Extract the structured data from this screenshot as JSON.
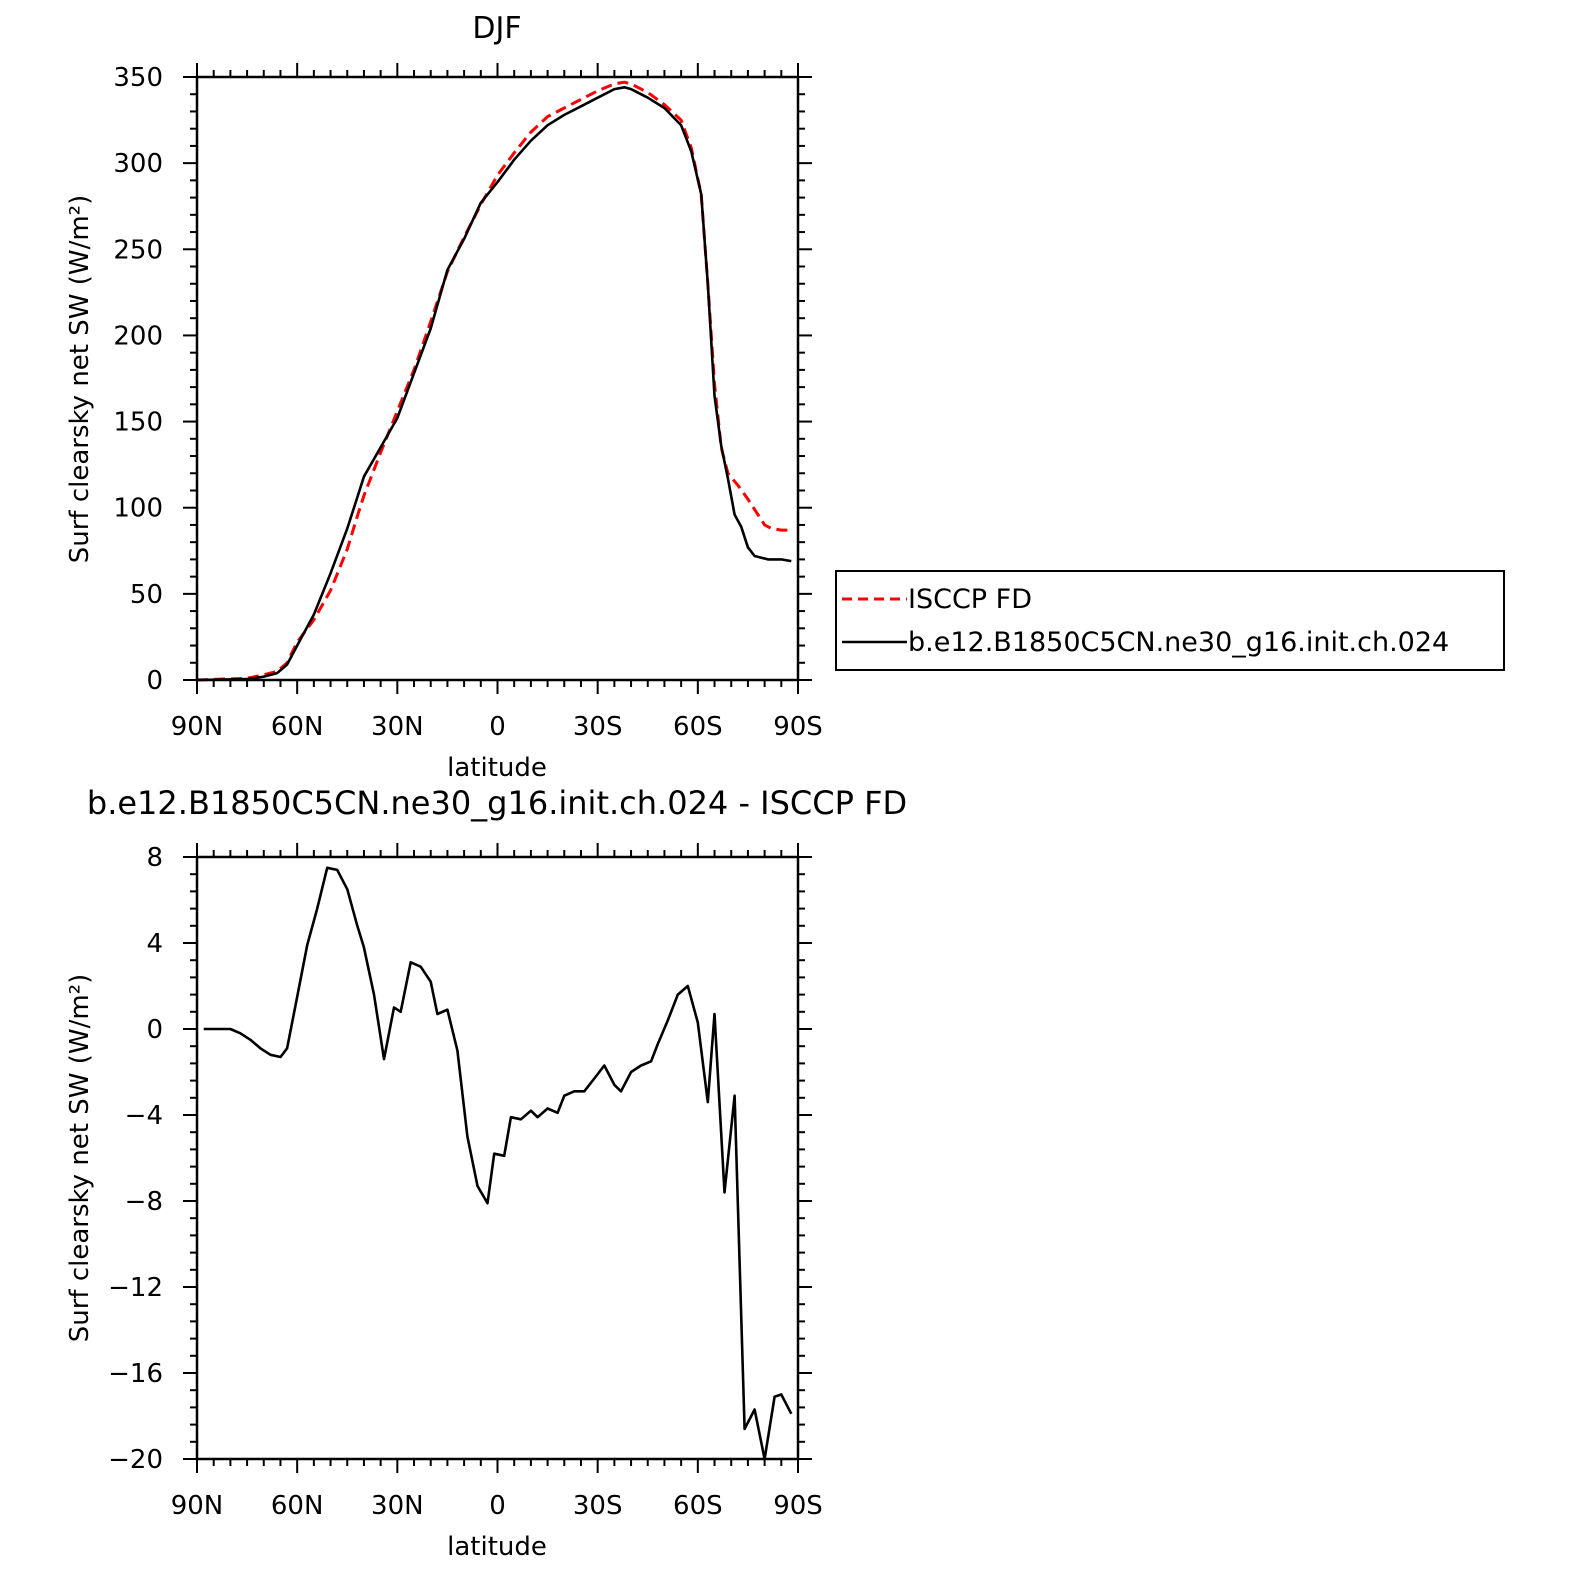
{
  "chart_data": [
    {
      "type": "line",
      "title": "DJF",
      "xlabel": "latitude",
      "ylabel": "Surf clearsky net SW (W/m²)",
      "xlim": [
        90,
        -90
      ],
      "ylim": [
        0,
        350
      ],
      "x_ticks": [
        90,
        60,
        30,
        0,
        -30,
        -60,
        -90
      ],
      "x_tick_labels": [
        "90N",
        "60N",
        "30N",
        "0",
        "30S",
        "60S",
        "90S"
      ],
      "y_ticks": [
        0,
        50,
        100,
        150,
        200,
        250,
        300,
        350
      ],
      "y_tick_labels": [
        "0",
        "50",
        "100",
        "150",
        "200",
        "250",
        "300",
        "350"
      ],
      "legend": {
        "placement": "outside-right"
      },
      "series": [
        {
          "name": "ISCCP FD",
          "color": "#ff0000",
          "dash": "dashed",
          "x": [
            90,
            75,
            70,
            66,
            63,
            60,
            55,
            50,
            45,
            42,
            40,
            35,
            30,
            25,
            20,
            15,
            10,
            5,
            0,
            -5,
            -10,
            -15,
            -20,
            -25,
            -30,
            -35,
            -38,
            -40,
            -45,
            -50,
            -55,
            -58,
            -61,
            -63,
            -65,
            -67,
            -69,
            -72,
            -75,
            -78,
            -80,
            -82,
            -85,
            -88
          ],
          "y": [
            0,
            1,
            3,
            5,
            10,
            22,
            35,
            52,
            76,
            95,
            107,
            132,
            156,
            180,
            208,
            237,
            257,
            276,
            293,
            306,
            318,
            327,
            332,
            337,
            342,
            346,
            347,
            346,
            341,
            334,
            325,
            309,
            282,
            230,
            172,
            135,
            120,
            113,
            105,
            96,
            90,
            88,
            87,
            87
          ]
        },
        {
          "name": "b.e12.B1850C5CN.ne30_g16.init.ch.024",
          "color": "#000000",
          "dash": "solid",
          "x": [
            90,
            75,
            70,
            66,
            63,
            60,
            55,
            50,
            45,
            42,
            40,
            35,
            30,
            25,
            20,
            15,
            10,
            5,
            0,
            -5,
            -10,
            -15,
            -20,
            -25,
            -30,
            -35,
            -38,
            -40,
            -45,
            -50,
            -55,
            -58,
            -61,
            -63,
            -65,
            -67,
            -69,
            -71,
            -73,
            -75,
            -77,
            -79,
            -81,
            -83,
            -85,
            -88
          ],
          "y": [
            0,
            0.5,
            2,
            4,
            9,
            20,
            38,
            62,
            88,
            106,
            118,
            135,
            152,
            178,
            204,
            238,
            256,
            277,
            289,
            302,
            313,
            322,
            328,
            333,
            338,
            343,
            344,
            343,
            338,
            332,
            322,
            307,
            282,
            230,
            165,
            136,
            117,
            96,
            89,
            77,
            72,
            71,
            70,
            70,
            70,
            69
          ]
        }
      ]
    },
    {
      "type": "line",
      "title": "b.e12.B1850C5CN.ne30_g16.init.ch.024 - ISCCP FD",
      "xlabel": "latitude",
      "ylabel": "Surf clearsky net SW (W/m²)",
      "xlim": [
        90,
        -90
      ],
      "ylim": [
        -20,
        8
      ],
      "x_ticks": [
        90,
        60,
        30,
        0,
        -30,
        -60,
        -90
      ],
      "x_tick_labels": [
        "90N",
        "60N",
        "30N",
        "0",
        "30S",
        "60S",
        "90S"
      ],
      "y_ticks": [
        -20,
        -16,
        -12,
        -8,
        -4,
        0,
        4,
        8
      ],
      "y_tick_labels": [
        "−20",
        "−16",
        "−12",
        "−8",
        "−4",
        "0",
        "4",
        "8"
      ],
      "series": [
        {
          "color": "#000000",
          "dash": "solid",
          "x": [
            88,
            84,
            80,
            77,
            74,
            71,
            68,
            65,
            63,
            60,
            57,
            54,
            51,
            48,
            45,
            42,
            40,
            37,
            34,
            31,
            29,
            26,
            23,
            20,
            18,
            15,
            12,
            9,
            6,
            3,
            1,
            -2,
            -4,
            -7,
            -10,
            -12,
            -15,
            -18,
            -20,
            -23,
            -26,
            -29,
            -32,
            -35,
            -37,
            -40,
            -43,
            -46,
            -48,
            -51,
            -54,
            -57,
            -60,
            -63,
            -65,
            -68,
            -71,
            -74,
            -77,
            -80,
            -83,
            -85,
            -88
          ],
          "y": [
            0,
            0,
            0,
            -0.2,
            -0.5,
            -0.9,
            -1.2,
            -1.3,
            -0.9,
            1.5,
            3.9,
            5.6,
            7.5,
            7.4,
            6.5,
            4.8,
            3.8,
            1.6,
            -1.4,
            1.0,
            0.8,
            3.1,
            2.9,
            2.2,
            0.7,
            0.9,
            -1.0,
            -5.0,
            -7.3,
            -8.1,
            -5.8,
            -5.9,
            -4.1,
            -4.2,
            -3.8,
            -4.1,
            -3.7,
            -3.9,
            -3.1,
            -2.9,
            -2.9,
            -2.3,
            -1.7,
            -2.6,
            -2.9,
            -2.0,
            -1.7,
            -1.5,
            -0.7,
            0.4,
            1.6,
            2.0,
            0.3,
            -3.4,
            0.7,
            -7.6,
            -3.1,
            -18.6,
            -17.7,
            -20.0,
            -17.1,
            -17.0,
            -17.9
          ]
        }
      ]
    }
  ]
}
